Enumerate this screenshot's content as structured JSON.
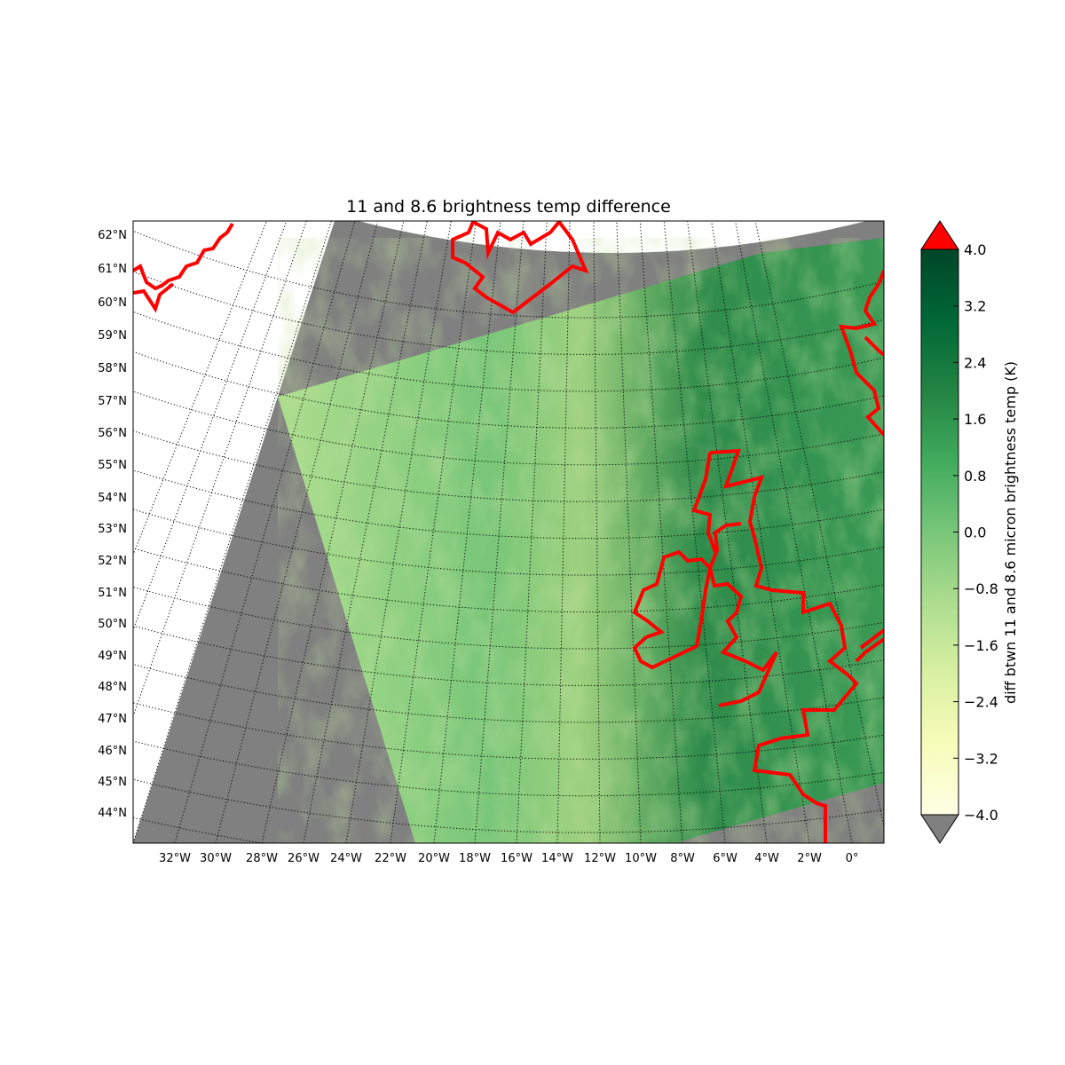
{
  "title": "11 and 8.6 brightness temp difference",
  "chart_data": {
    "type": "heatmap",
    "title": "11 and 8.6 brightness temp difference",
    "map": {
      "lon_ticks": [
        "32°W",
        "30°W",
        "28°W",
        "26°W",
        "24°W",
        "22°W",
        "20°W",
        "18°W",
        "16°W",
        "14°W",
        "12°W",
        "10°W",
        "8°W",
        "6°W",
        "4°W",
        "2°W",
        "0°"
      ],
      "lat_ticks": [
        "62°N",
        "61°N",
        "60°N",
        "59°N",
        "58°N",
        "57°N",
        "56°N",
        "55°N",
        "54°N",
        "53°N",
        "52°N",
        "51°N",
        "50°N",
        "49°N",
        "48°N",
        "47°N",
        "46°N",
        "45°N",
        "44°N"
      ],
      "lon_range": [
        -34,
        1.5
      ],
      "lat_range": [
        43.2,
        62.5
      ],
      "graticule": "dotted",
      "coastline_color": "#ff0000",
      "nodata_color": "#808080"
    },
    "colorbar": {
      "label": "diff btwn 11 and 8.6 micron brightness temp (K)",
      "ticks": [
        "4.0",
        "3.2",
        "2.4",
        "1.6",
        "0.8",
        "0.0",
        "−0.8",
        "−1.6",
        "−2.4",
        "−3.2",
        "−4.0"
      ],
      "range": [
        -4.0,
        4.0
      ],
      "colormap": "YlGn",
      "colors": [
        "#ffffe5",
        "#f7fcb9",
        "#d9f0a3",
        "#addd8e",
        "#78c679",
        "#41ab5d",
        "#238443",
        "#006837",
        "#004529"
      ],
      "over_color": "#ff0000",
      "under_color": "#808080",
      "extend": "both"
    }
  }
}
